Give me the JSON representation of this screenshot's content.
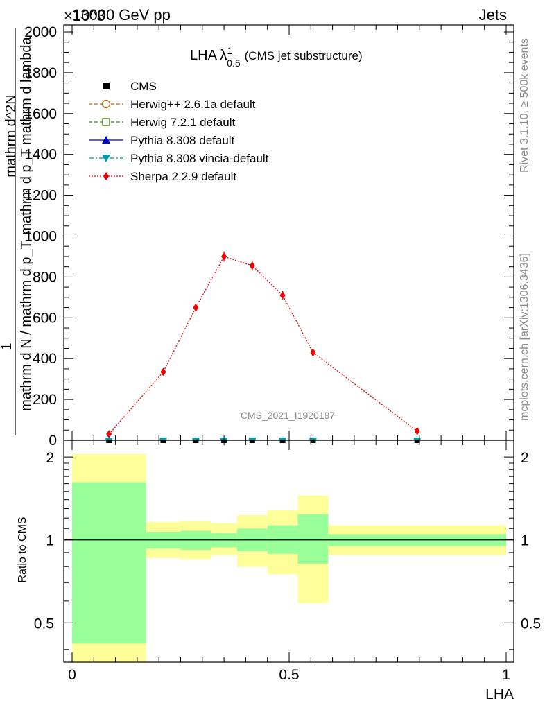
{
  "header": {
    "left": "13000 GeV pp",
    "right": "Jets",
    "exponent_label": "×10^3"
  },
  "side_labels": {
    "rivet": "Rivet 3.1.10, ≥ 500k events",
    "mcplots": "mcplots.cern.ch [arXiv:1306.3436]"
  },
  "watermark": "CMS_2021_I1920187",
  "main_title": {
    "main": "LHA λ",
    "sup": "1",
    "sub": "0.5",
    "suffix": "(CMS jet substructure)"
  },
  "y_axis_main": {
    "top_numerator": "mathrm d^2N",
    "top_denominator": "mathrm d p_T mathrm d lambda",
    "fraction_numerator": "1",
    "fraction_denominator": "mathrm d N / mathrm d p_T"
  },
  "ratio_ylabel": "Ratio to CMS",
  "x_axis_label": "LHA",
  "legend": [
    {
      "label": "CMS",
      "color": "#000000",
      "marker": "square-filled",
      "line": "none"
    },
    {
      "label": "Herwig++ 2.6.1a default",
      "color": "#b36b00",
      "marker": "circle-open",
      "line": "dashed"
    },
    {
      "label": "Herwig 7.2.1 default",
      "color": "#3a8a00",
      "marker": "square-open",
      "line": "dashed"
    },
    {
      "label": "Pythia 8.308 default",
      "color": "#0000cc",
      "marker": "triangle-up",
      "line": "solid"
    },
    {
      "label": "Pythia 8.308 vincia-default",
      "color": "#0099aa",
      "marker": "triangle-down",
      "line": "dashdot"
    },
    {
      "label": "Sherpa 2.2.9 default",
      "color": "#ee0000",
      "marker": "diamond",
      "line": "dotted"
    }
  ],
  "chart_data": [
    {
      "type": "line",
      "xlim": [
        0,
        1
      ],
      "ylim": [
        0,
        2000
      ],
      "y_scale_factor": "×10^3",
      "xticks": [
        "0",
        "0.5",
        "1"
      ],
      "yticks": [
        "0",
        "200",
        "400",
        "600",
        "800",
        "1000",
        "1200",
        "1400",
        "1600",
        "1800",
        "2000"
      ],
      "series": [
        {
          "name": "Sherpa 2.2.9 default",
          "color": "#ee0000",
          "x": [
            0.085,
            0.21,
            0.285,
            0.35,
            0.415,
            0.485,
            0.555,
            0.795
          ],
          "y": [
            30,
            335,
            650,
            900,
            855,
            710,
            430,
            45
          ],
          "err": [
            15,
            15,
            20,
            25,
            25,
            20,
            12,
            10
          ]
        },
        {
          "name": "CMS",
          "color": "#000000",
          "x": [
            0.085,
            0.21,
            0.285,
            0.35,
            0.415,
            0.485,
            0.555,
            0.795
          ],
          "y": [
            0,
            0,
            0,
            0,
            0,
            0,
            0,
            0
          ]
        },
        {
          "name": "Pythia 8.308 vincia-default",
          "color": "#0099aa",
          "x": [
            0.085,
            0.21,
            0.285,
            0.35,
            0.415,
            0.485,
            0.555,
            0.795
          ],
          "y": [
            0,
            0,
            0,
            0,
            0,
            0,
            0,
            0
          ]
        }
      ]
    },
    {
      "type": "area",
      "ylabel": "Ratio to CMS",
      "xlabel": "LHA",
      "xlim": [
        0,
        1
      ],
      "ylim": [
        0.36,
        2.3
      ],
      "yscale": "log",
      "yticks": [
        "0.5",
        "1",
        "2"
      ],
      "reference_line": 1,
      "bins": [
        {
          "lo": 0.0,
          "hi": 0.17,
          "inner": [
            0.42,
            1.62
          ],
          "outer": [
            0.36,
            2.05
          ]
        },
        {
          "lo": 0.17,
          "hi": 0.25,
          "inner": [
            0.93,
            1.07
          ],
          "outer": [
            0.86,
            1.16
          ]
        },
        {
          "lo": 0.25,
          "hi": 0.32,
          "inner": [
            0.92,
            1.08
          ],
          "outer": [
            0.85,
            1.17
          ]
        },
        {
          "lo": 0.32,
          "hi": 0.38,
          "inner": [
            0.94,
            1.06
          ],
          "outer": [
            0.88,
            1.15
          ]
        },
        {
          "lo": 0.38,
          "hi": 0.45,
          "inner": [
            0.91,
            1.1
          ],
          "outer": [
            0.8,
            1.23
          ]
        },
        {
          "lo": 0.45,
          "hi": 0.52,
          "inner": [
            0.89,
            1.13
          ],
          "outer": [
            0.75,
            1.28
          ]
        },
        {
          "lo": 0.52,
          "hi": 0.59,
          "inner": [
            0.82,
            1.24
          ],
          "outer": [
            0.59,
            1.45
          ]
        },
        {
          "lo": 0.59,
          "hi": 1.0,
          "inner": [
            0.95,
            1.05
          ],
          "outer": [
            0.88,
            1.13
          ]
        }
      ],
      "band_colors": {
        "inner": "#99ff99",
        "outer": "#ffff99"
      }
    }
  ]
}
